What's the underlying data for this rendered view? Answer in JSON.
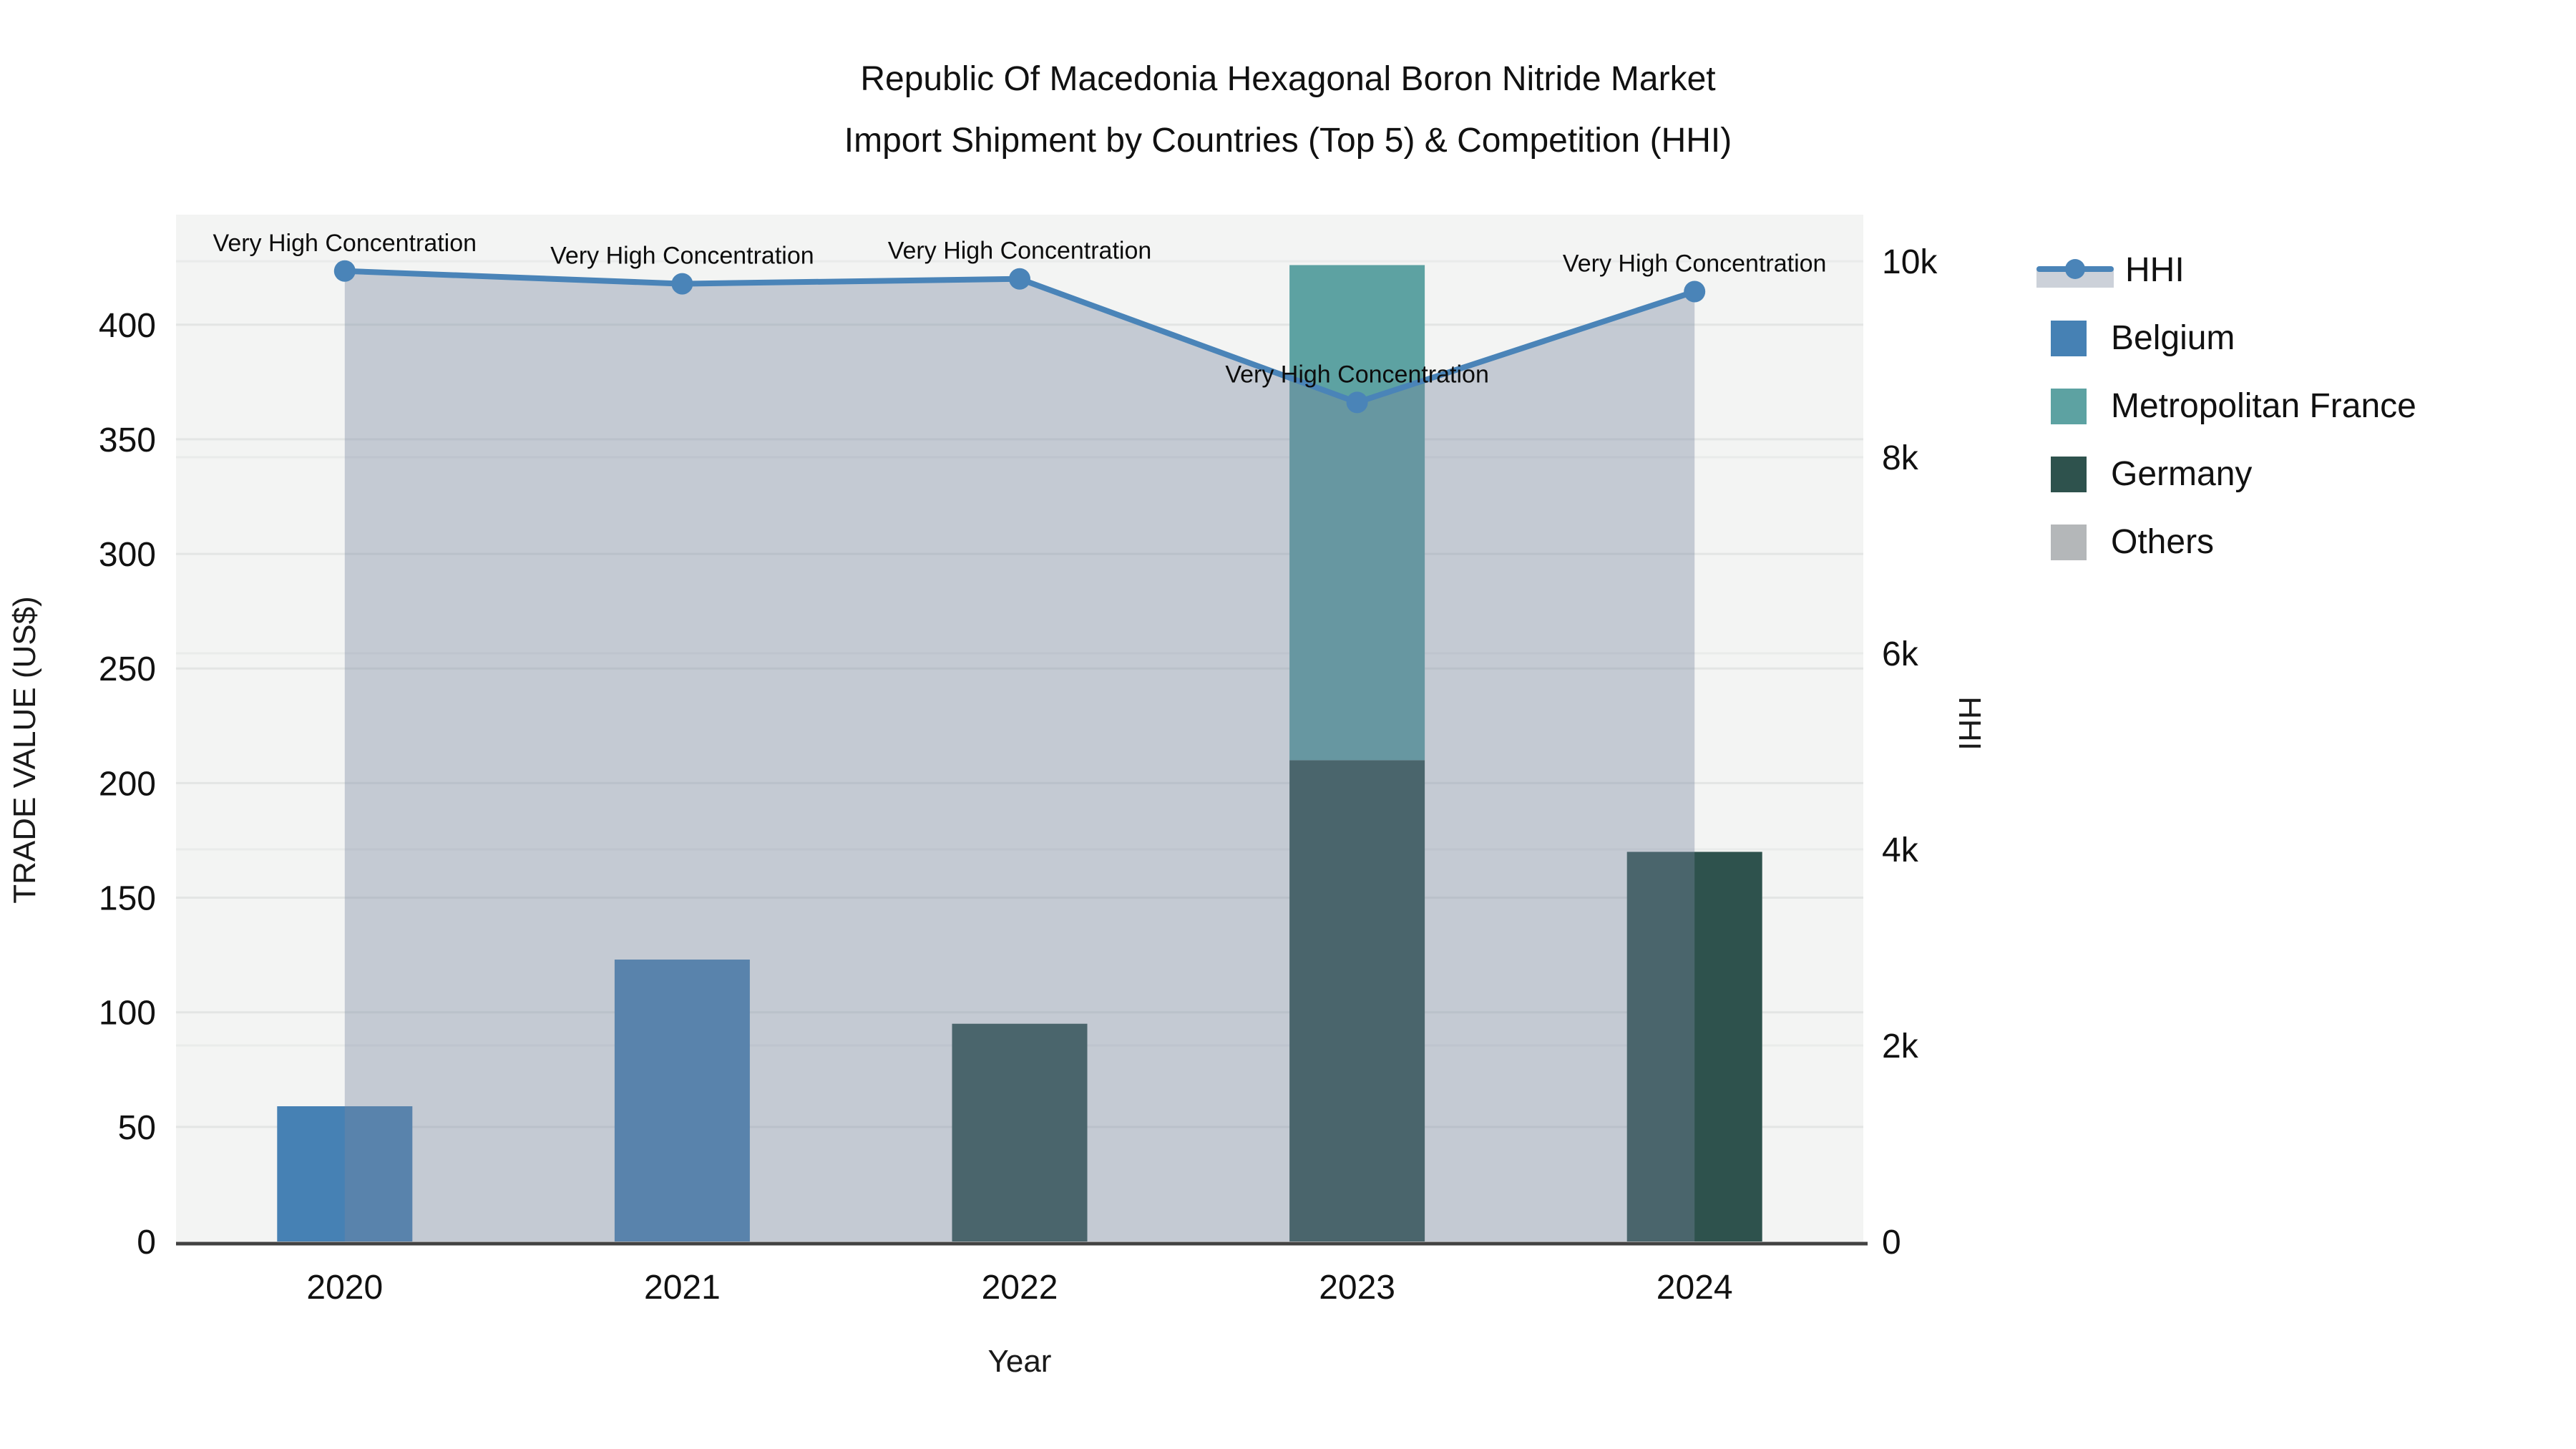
{
  "title": {
    "line1": "Republic Of Macedonia Hexagonal Boron Nitride Market",
    "line2": "Import Shipment by Countries (Top 5) & Competition (HHI)"
  },
  "axes": {
    "left": {
      "title": "TRADE VALUE (US$)",
      "ticks": [
        0,
        50,
        100,
        150,
        200,
        250,
        300,
        350,
        400
      ],
      "range": [
        0,
        448
      ]
    },
    "right": {
      "title": "HHI",
      "ticks": [
        {
          "v": 0,
          "label": "0"
        },
        {
          "v": 2000,
          "label": "2k"
        },
        {
          "v": 4000,
          "label": "4k"
        },
        {
          "v": 6000,
          "label": "6k"
        },
        {
          "v": 8000,
          "label": "8k"
        },
        {
          "v": 10000,
          "label": "10k"
        }
      ],
      "range": [
        0,
        10475
      ]
    },
    "x": {
      "title": "Year"
    }
  },
  "legend": {
    "items": [
      {
        "label": "HHI",
        "type": "line",
        "color": "#4a84b8"
      },
      {
        "label": "Belgium",
        "type": "square",
        "color": "#4681b4"
      },
      {
        "label": "Metropolitan France",
        "type": "square",
        "color": "#5da2a2"
      },
      {
        "label": "Germany",
        "type": "square",
        "color": "#2e524d"
      },
      {
        "label": "Others",
        "type": "square",
        "color": "#b4b7b9"
      }
    ]
  },
  "chart_data": {
    "type": "bar",
    "subtype": "stacked bars + line on secondary axis with area fill",
    "categories": [
      "2020",
      "2021",
      "2022",
      "2023",
      "2024"
    ],
    "bars": [
      {
        "category": "2020",
        "segments": [
          {
            "name": "Belgium",
            "value": 59
          }
        ]
      },
      {
        "category": "2021",
        "segments": [
          {
            "name": "Belgium",
            "value": 123
          }
        ]
      },
      {
        "category": "2022",
        "segments": [
          {
            "name": "Germany",
            "value": 95
          }
        ]
      },
      {
        "category": "2023",
        "segments": [
          {
            "name": "Germany",
            "value": 210
          },
          {
            "name": "Metropolitan France",
            "value": 216
          }
        ]
      },
      {
        "category": "2024",
        "segments": [
          {
            "name": "Germany",
            "value": 170
          }
        ]
      }
    ],
    "series_colors": {
      "Belgium": "#4681b4",
      "Metropolitan France": "#5da2a2",
      "Germany": "#2e524d",
      "Others": "#b4b7b9"
    },
    "hhi": {
      "name": "HHI",
      "values": [
        9900,
        9770,
        9820,
        8560,
        9690
      ],
      "annotation_text": "Very High Concentration",
      "line_color": "#4a84b8",
      "fill_color": "rgba(120,134,160,0.38)"
    },
    "title": "Republic Of Macedonia Hexagonal Boron Nitride Market Import Shipment by Countries (Top 5) & Competition (HHI)",
    "xlabel": "Year",
    "ylabel_left": "TRADE VALUE (US$)",
    "ylabel_right": "HHI",
    "ylim_left": [
      0,
      448
    ],
    "ylim_right": [
      0,
      10475
    ],
    "grid": true,
    "legend_position": "right",
    "plot_bg": "#f3f4f3",
    "gridline_color": "#e3e5e4",
    "axisline_color": "#424242",
    "tick_color": "#111111"
  }
}
